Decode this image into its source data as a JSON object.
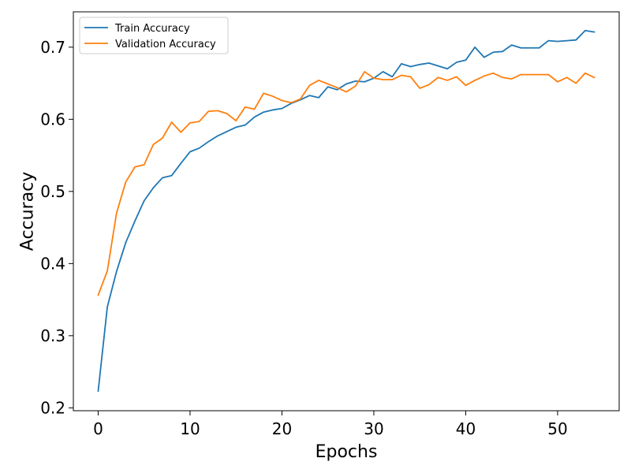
{
  "chart_data": {
    "type": "line",
    "xlabel": "Epochs",
    "ylabel": "Accuracy",
    "xlim": [
      -2.7,
      56.7
    ],
    "ylim": [
      0.196,
      0.749
    ],
    "xticks": [
      0,
      10,
      20,
      30,
      40,
      50
    ],
    "yticks": [
      0.2,
      0.3,
      0.4,
      0.5,
      0.6,
      0.7
    ],
    "xtick_labels": [
      "0",
      "10",
      "20",
      "30",
      "40",
      "50"
    ],
    "ytick_labels": [
      "0.2",
      "0.3",
      "0.4",
      "0.5",
      "0.6",
      "0.7"
    ],
    "grid": false,
    "legend_position": "top-left",
    "x": [
      0,
      1,
      2,
      3,
      4,
      5,
      6,
      7,
      8,
      9,
      10,
      11,
      12,
      13,
      14,
      15,
      16,
      17,
      18,
      19,
      20,
      21,
      22,
      23,
      24,
      25,
      26,
      27,
      28,
      29,
      30,
      31,
      32,
      33,
      34,
      35,
      36,
      37,
      38,
      39,
      40,
      41,
      42,
      43,
      44,
      45,
      46,
      47,
      48,
      49,
      50,
      51,
      52,
      53,
      54
    ],
    "series": [
      {
        "name": "Train Accuracy",
        "color": "#1f77b4",
        "values": [
          0.223,
          0.34,
          0.389,
          0.429,
          0.459,
          0.487,
          0.505,
          0.519,
          0.522,
          0.539,
          0.555,
          0.56,
          0.569,
          0.577,
          0.583,
          0.589,
          0.592,
          0.603,
          0.61,
          0.613,
          0.615,
          0.622,
          0.627,
          0.633,
          0.63,
          0.645,
          0.641,
          0.649,
          0.653,
          0.652,
          0.657,
          0.666,
          0.659,
          0.677,
          0.673,
          0.676,
          0.678,
          0.674,
          0.67,
          0.679,
          0.682,
          0.7,
          0.686,
          0.693,
          0.694,
          0.703,
          0.699,
          0.699,
          0.699,
          0.709,
          0.708,
          0.709,
          0.71,
          0.723,
          0.721
        ]
      },
      {
        "name": "Validation Accuracy",
        "color": "#ff7f0e",
        "values": [
          0.356,
          0.39,
          0.47,
          0.513,
          0.534,
          0.537,
          0.565,
          0.574,
          0.596,
          0.582,
          0.595,
          0.597,
          0.611,
          0.612,
          0.608,
          0.598,
          0.617,
          0.614,
          0.636,
          0.632,
          0.626,
          0.623,
          0.628,
          0.647,
          0.654,
          0.649,
          0.644,
          0.638,
          0.646,
          0.666,
          0.657,
          0.655,
          0.655,
          0.661,
          0.659,
          0.643,
          0.648,
          0.658,
          0.654,
          0.659,
          0.647,
          0.654,
          0.66,
          0.664,
          0.658,
          0.656,
          0.662,
          0.662,
          0.662,
          0.662,
          0.652,
          0.658,
          0.65,
          0.664,
          0.658
        ]
      }
    ]
  }
}
